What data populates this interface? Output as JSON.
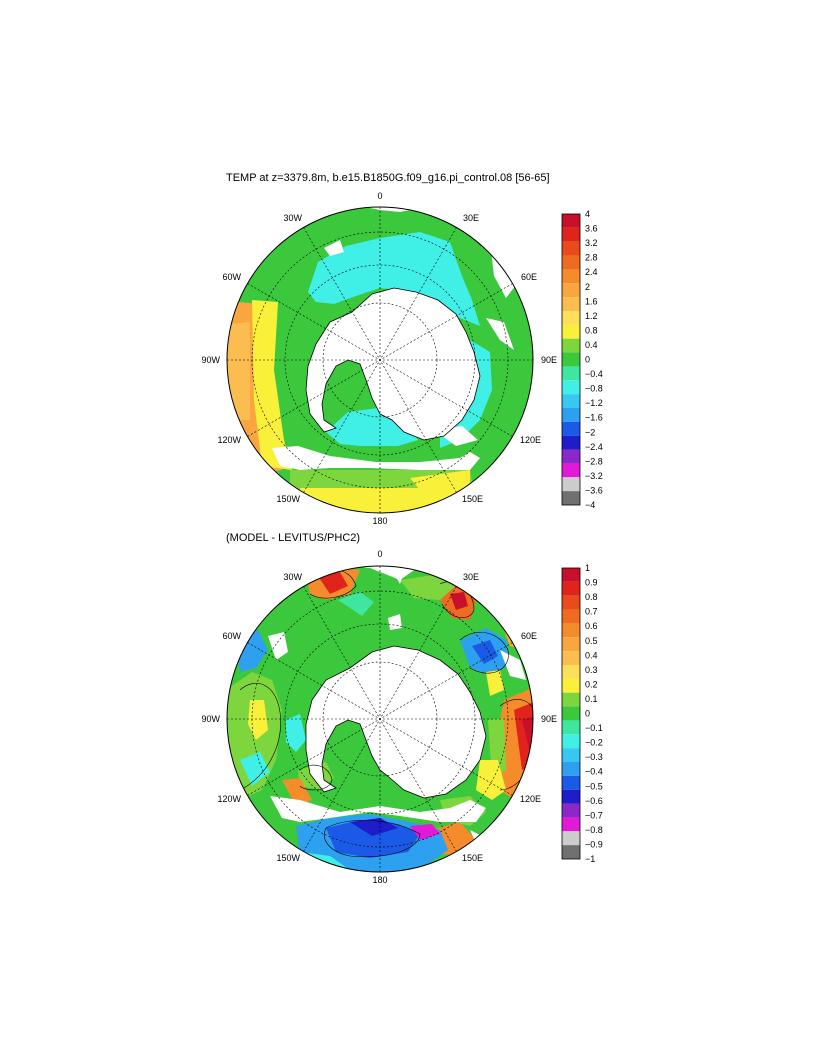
{
  "top_panel": {
    "title": "TEMP at z=3379.8m, b.e15.B1850G.f09_g16.pi_control.08 [56-65]",
    "lon_labels": {
      "n": "0",
      "nne": "30E",
      "ene": "60E",
      "e": "90E",
      "ese": "120E",
      "sse": "150E",
      "s": "180",
      "ssw": "150W",
      "wsw": "120W",
      "w": "90W",
      "wnw": "60W",
      "nnw": "30W"
    },
    "colorbar": {
      "labels": [
        "4",
        "3.6",
        "3.2",
        "2.8",
        "2.4",
        "2",
        "1.6",
        "1.2",
        "0.8",
        "0.4",
        "0",
        "−0.4",
        "−0.8",
        "−1.2",
        "−1.6",
        "−2",
        "−2.4",
        "−2.8",
        "−3.2",
        "−3.6",
        "−4"
      ],
      "colors": [
        "#c8102a",
        "#e0241c",
        "#ea4a1c",
        "#f06b22",
        "#f58c2c",
        "#f9a640",
        "#fbbd50",
        "#fde05a",
        "#f9f03a",
        "#7ed63e",
        "#3cc83c",
        "#3ee6a0",
        "#40f0e6",
        "#36c8f0",
        "#2ea0f0",
        "#1a5ae6",
        "#1f1ccc",
        "#8a28c8",
        "#e01ad6",
        "#cccccc",
        "#707070"
      ]
    }
  },
  "bottom_panel": {
    "title": "(MODEL - LEVITUS/PHC2)",
    "lon_labels": {
      "n": "0",
      "nne": "30E",
      "ene": "60E",
      "e": "90E",
      "ese": "120E",
      "sse": "150E",
      "s": "180",
      "ssw": "150W",
      "wsw": "120W",
      "w": "90W",
      "wnw": "60W",
      "nnw": "30W"
    },
    "colorbar": {
      "labels": [
        "1",
        "0.9",
        "0.8",
        "0.7",
        "0.6",
        "0.5",
        "0.4",
        "0.3",
        "0.2",
        "0.1",
        "0",
        "−0.1",
        "−0.2",
        "−0.3",
        "−0.4",
        "−0.5",
        "−0.6",
        "−0.7",
        "−0.8",
        "−0.9",
        "−1"
      ],
      "colors": [
        "#c8102a",
        "#e0241c",
        "#ea4a1c",
        "#f06b22",
        "#f58c2c",
        "#f9a640",
        "#fbbd50",
        "#fde05a",
        "#f9f03a",
        "#7ed63e",
        "#3cc83c",
        "#3ee6a0",
        "#40f0e6",
        "#36c8f0",
        "#2ea0f0",
        "#1a5ae6",
        "#1f1ccc",
        "#8a28c8",
        "#e01ad6",
        "#cccccc",
        "#707070"
      ]
    }
  }
}
